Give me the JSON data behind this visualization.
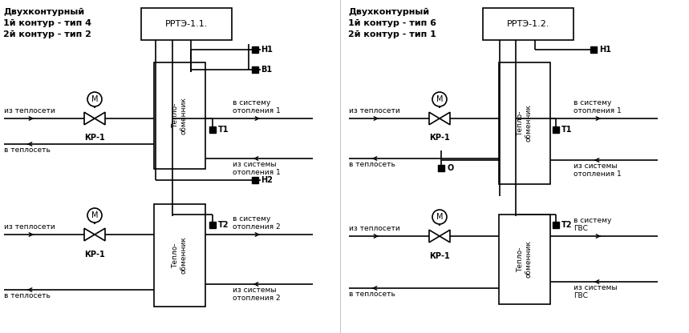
{
  "diag1": {
    "title": [
      "Двухконтурный",
      "1й контур - тип 4",
      "2й контур - тип 2"
    ],
    "rrtze": "РРТЭ-1.1.",
    "sensors_right": [
      "Н1",
      "В1",
      "Н2"
    ],
    "sensors_pipe": [
      "Т1",
      "Т2"
    ],
    "valve_labels": [
      "КР-1",
      "КР-1"
    ],
    "texts": {
      "from_heat1": "из теплосети",
      "to_heat1": "в теплосеть",
      "to_sys1": "в систему\nотопления 1",
      "from_sys1": "из системы\nотопления 1",
      "from_heat2": "из теплосети",
      "to_heat2": "в теплосеть",
      "to_sys2": "в систему\nотопления 2",
      "from_sys2": "из системы\nотопления 2"
    }
  },
  "diag2": {
    "title": [
      "Двухконтурный",
      "1й контур - тип 6",
      "2й контур - тип 1"
    ],
    "rrtze": "РРТЭ-1.2.",
    "sensors_right": [
      "Н1"
    ],
    "sensors_pipe": [
      "Т1",
      "Т2"
    ],
    "sensor_o": "О",
    "valve_labels": [
      "КР-1",
      "КР-1"
    ],
    "texts": {
      "from_heat1": "из теплосети",
      "to_heat1": "в теплосеть",
      "to_sys1": "в систему\nотопления 1",
      "from_sys1": "из системы\nотопления 1",
      "from_heat2": "из теплосети",
      "to_heat2": "в теплосеть",
      "to_sys2": "в систему\nГВС",
      "from_sys2": "из системы\nГВС"
    }
  }
}
